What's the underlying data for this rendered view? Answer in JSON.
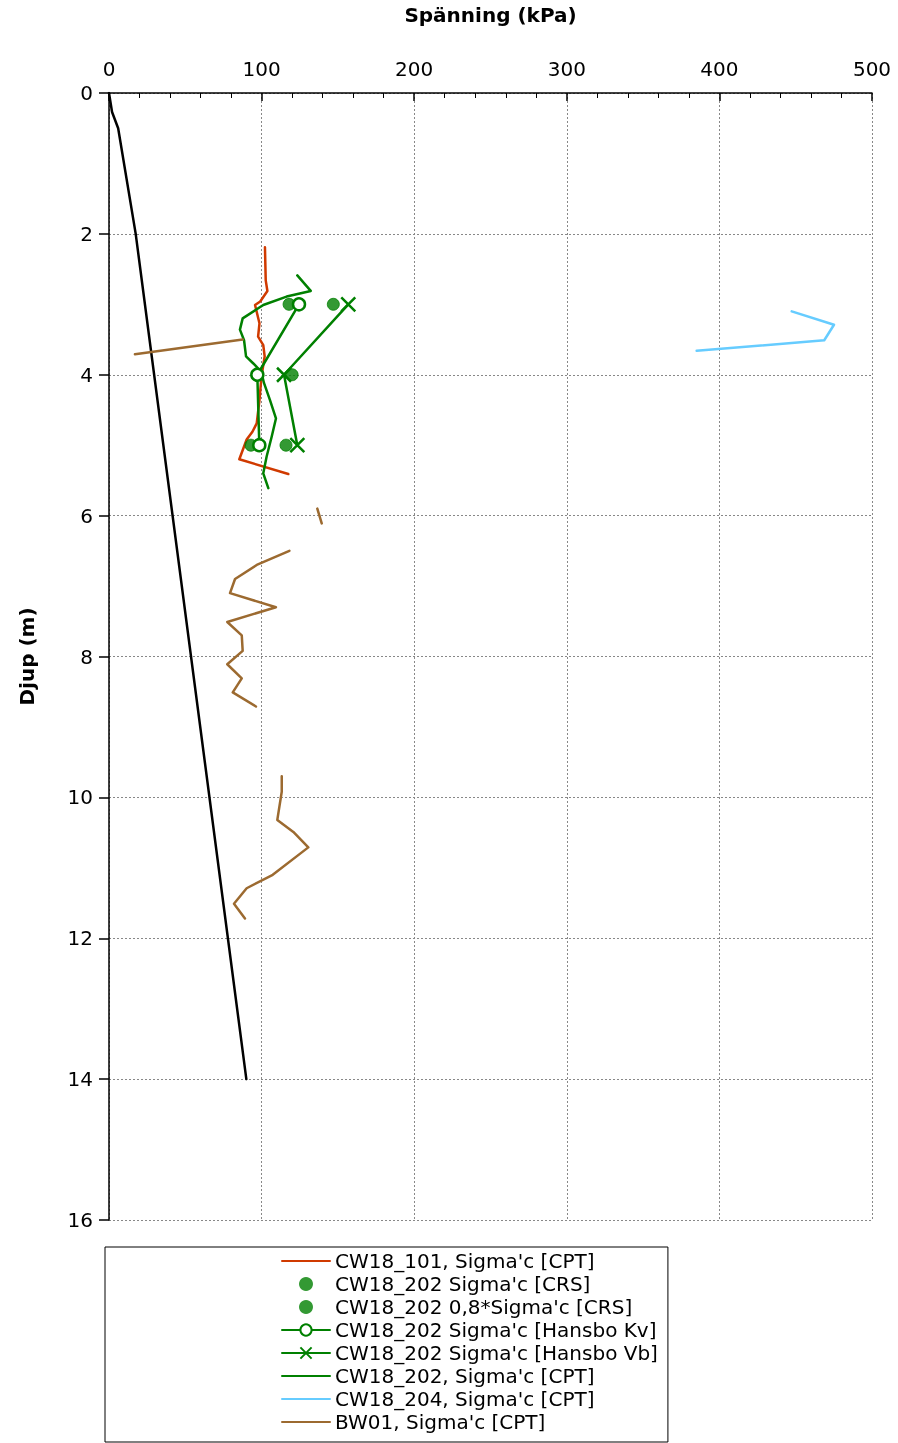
{
  "chart_data": {
    "type": "line",
    "xlabel": "Spänning (kPa)",
    "ylabel": "Djup (m)",
    "xlim": [
      0,
      500
    ],
    "xticks": [
      0,
      100,
      200,
      300,
      400,
      500
    ],
    "ylim": [
      16,
      0
    ],
    "yticks": [
      0,
      2,
      4,
      6,
      8,
      10,
      12,
      14,
      16
    ],
    "grid": true,
    "legend": "bottom",
    "line_style": "solid",
    "series": [
      {
        "color": "#000000",
        "marker": "none",
        "x": [
          0,
          2,
          6,
          17.5,
          90
        ],
        "values": [
          0,
          0.27,
          0.5,
          2,
          14
        ]
      },
      {
        "name": "CW18_101, Sigma'c [CPT]",
        "color": "#d03a00",
        "marker": "none",
        "x": [
          102.2,
          102.7,
          103.8,
          99.1,
          95.7,
          98.6,
          97.7,
          101.1,
          102.0,
          99.9,
          98.6,
          96.8,
          94.0,
          90.2,
          85.4,
          117.5
        ],
        "values": [
          2.19,
          2.66,
          2.81,
          2.96,
          3.01,
          3.27,
          3.46,
          3.58,
          3.74,
          4.03,
          4.36,
          4.69,
          4.81,
          4.92,
          5.2,
          5.41
        ]
      },
      {
        "name": "CW18_202 Sigma'c [CRS]",
        "type": "scatter",
        "color": "#008000",
        "marker": "circle",
        "x": [
          147,
          120,
          116
        ],
        "values": [
          3,
          4,
          5
        ]
      },
      {
        "name": "CW18_202 0,8*Sigma'c [CRS]",
        "type": "scatter",
        "color": "#008000",
        "marker": "circle",
        "x": [
          118,
          null,
          93
        ],
        "values": [
          3,
          null,
          5
        ]
      },
      {
        "name": "CW18_202 Sigma'c [Hansbo Kv]",
        "color": "#008000",
        "marker": "circle",
        "x": [
          124.5,
          97.2,
          98.5
        ],
        "values": [
          3,
          4,
          5
        ]
      },
      {
        "name": "CW18_202 Sigma'c [Hansbo Vb]",
        "color": "#008000",
        "marker": "cross",
        "x": [
          156.8,
          114.7,
          123.4
        ],
        "values": [
          3,
          4,
          5
        ]
      },
      {
        "name": "CW18_202, Sigma'c [CPT]",
        "color": "#008000",
        "marker": "none",
        "x": [
          123.4,
          132.2,
          116.4,
          101.1,
          87.6,
          85.8,
          88.5,
          89.8,
          94.6,
          99.8,
          101.6,
          105.5,
          109.4,
          106.6,
          103.3,
          101.1,
          104.4
        ],
        "values": [
          2.59,
          2.81,
          2.89,
          3.01,
          3.2,
          3.36,
          3.51,
          3.74,
          3.84,
          3.96,
          4.12,
          4.36,
          4.62,
          4.88,
          5.16,
          5.4,
          5.61
        ]
      },
      {
        "name": "CW18_204, Sigma'c [CPT]",
        "color": "#66ccff",
        "marker": "none",
        "x": [
          447.4,
          475.1,
          468.7,
          385.1
        ],
        "values": [
          3.1,
          3.29,
          3.51,
          3.66
        ]
      },
      {
        "name": "BW01, Sigma'c [CPT]",
        "color": "#9c6a30",
        "marker": "none",
        "x": [
          17.0,
          87.6,
          null,
          136.5,
          139.4,
          null,
          118.2,
          96.8,
          82.6,
          79.3,
          109.4,
          77.5,
          87.0,
          87.6,
          77.5,
          87.0,
          81.1,
          96.3,
          null,
          113.2,
          113.2,
          110.3,
          120.8,
          130.6,
          107.3,
          90.2,
          81.9,
          89.1
        ],
        "values": [
          3.71,
          3.5,
          null,
          5.9,
          6.11,
          null,
          6.5,
          6.7,
          6.9,
          7.1,
          7.3,
          7.51,
          7.7,
          7.92,
          8.11,
          8.31,
          8.51,
          8.71,
          null,
          9.7,
          9.92,
          10.32,
          10.49,
          10.71,
          11.1,
          11.29,
          11.51,
          11.72
        ]
      }
    ]
  }
}
